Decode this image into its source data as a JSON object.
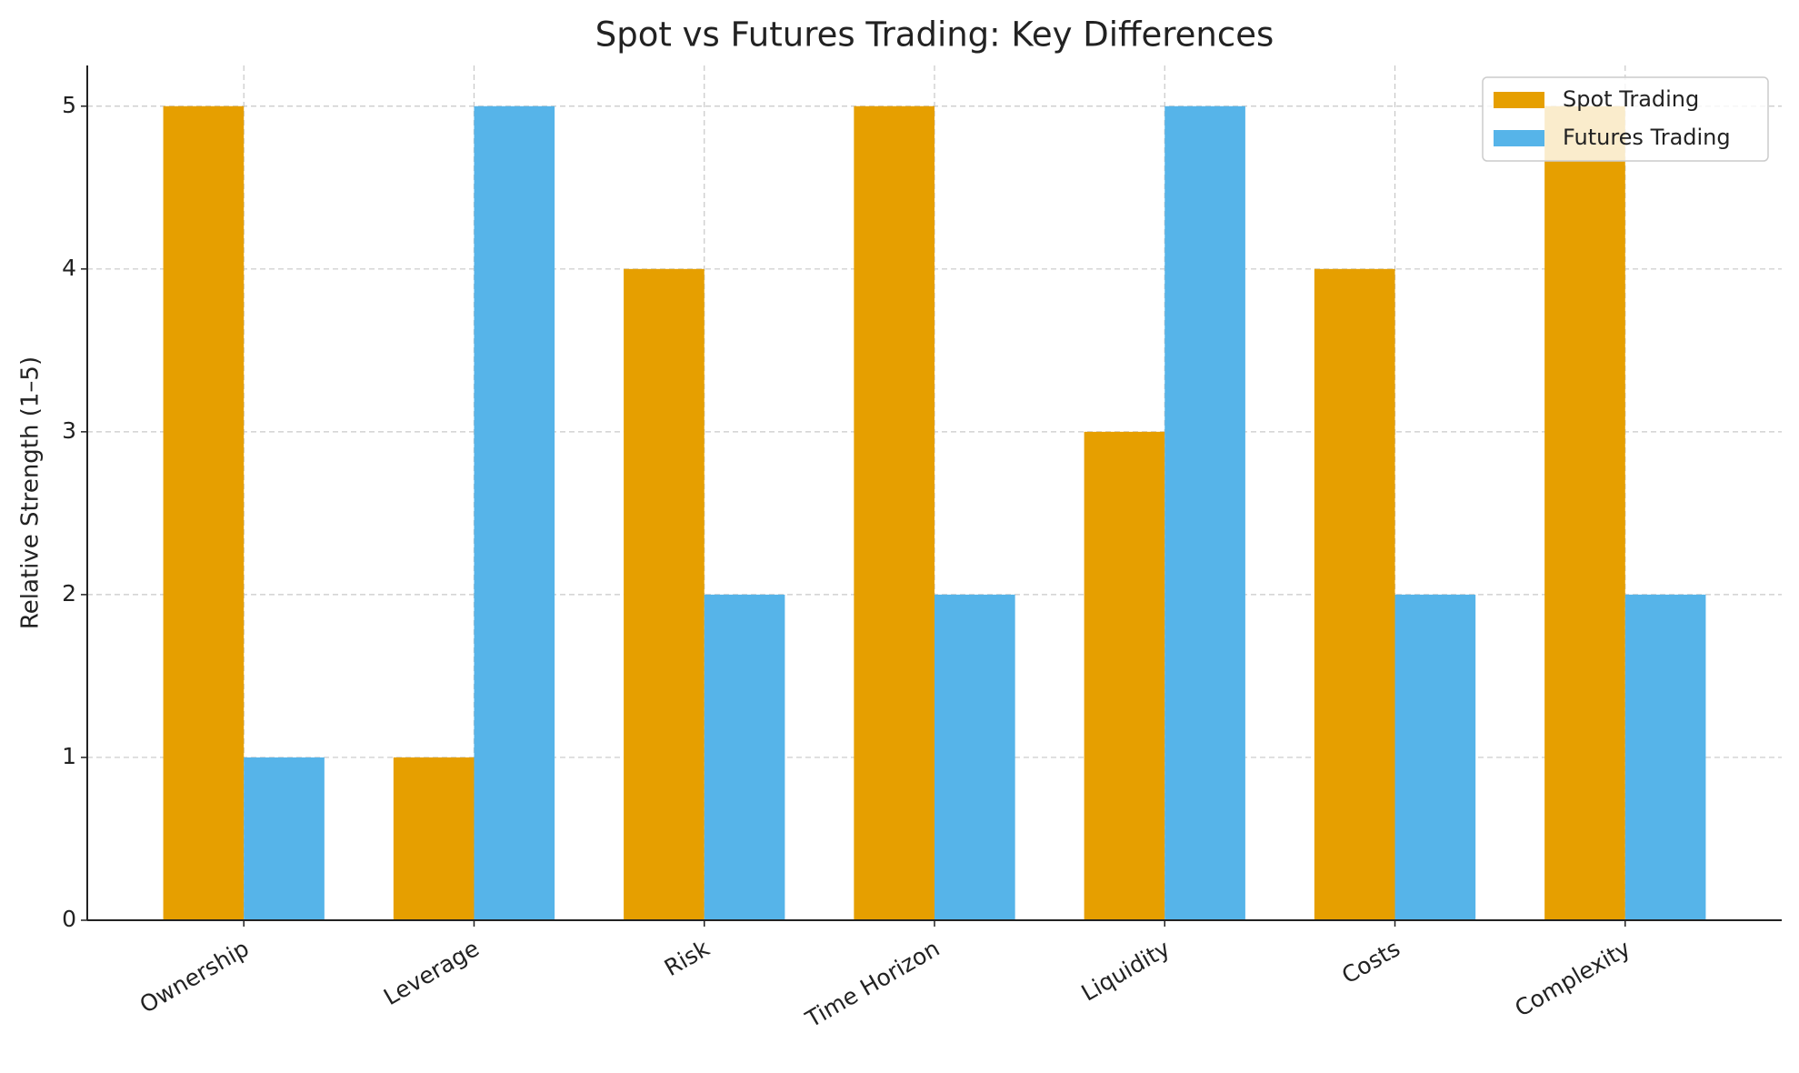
{
  "chart_data": {
    "type": "bar",
    "title": "Spot vs Futures Trading: Key Differences",
    "y_label": "Relative Strength (1–5)",
    "categories": [
      "Ownership",
      "Leverage",
      "Risk",
      "Time Horizon",
      "Liquidity",
      "Costs",
      "Complexity"
    ],
    "series": [
      {
        "name": "Spot Trading",
        "color": "#E69F00",
        "values": [
          5,
          1,
          4,
          5,
          3,
          4,
          5
        ]
      },
      {
        "name": "Futures Trading",
        "color": "#56B4E9",
        "values": [
          1,
          5,
          2,
          2,
          5,
          2,
          2
        ]
      }
    ],
    "ylim": [
      0,
      5.25
    ],
    "yticks": [
      0,
      1,
      2,
      3,
      4,
      5
    ],
    "grid": true,
    "legend": "upper right"
  }
}
